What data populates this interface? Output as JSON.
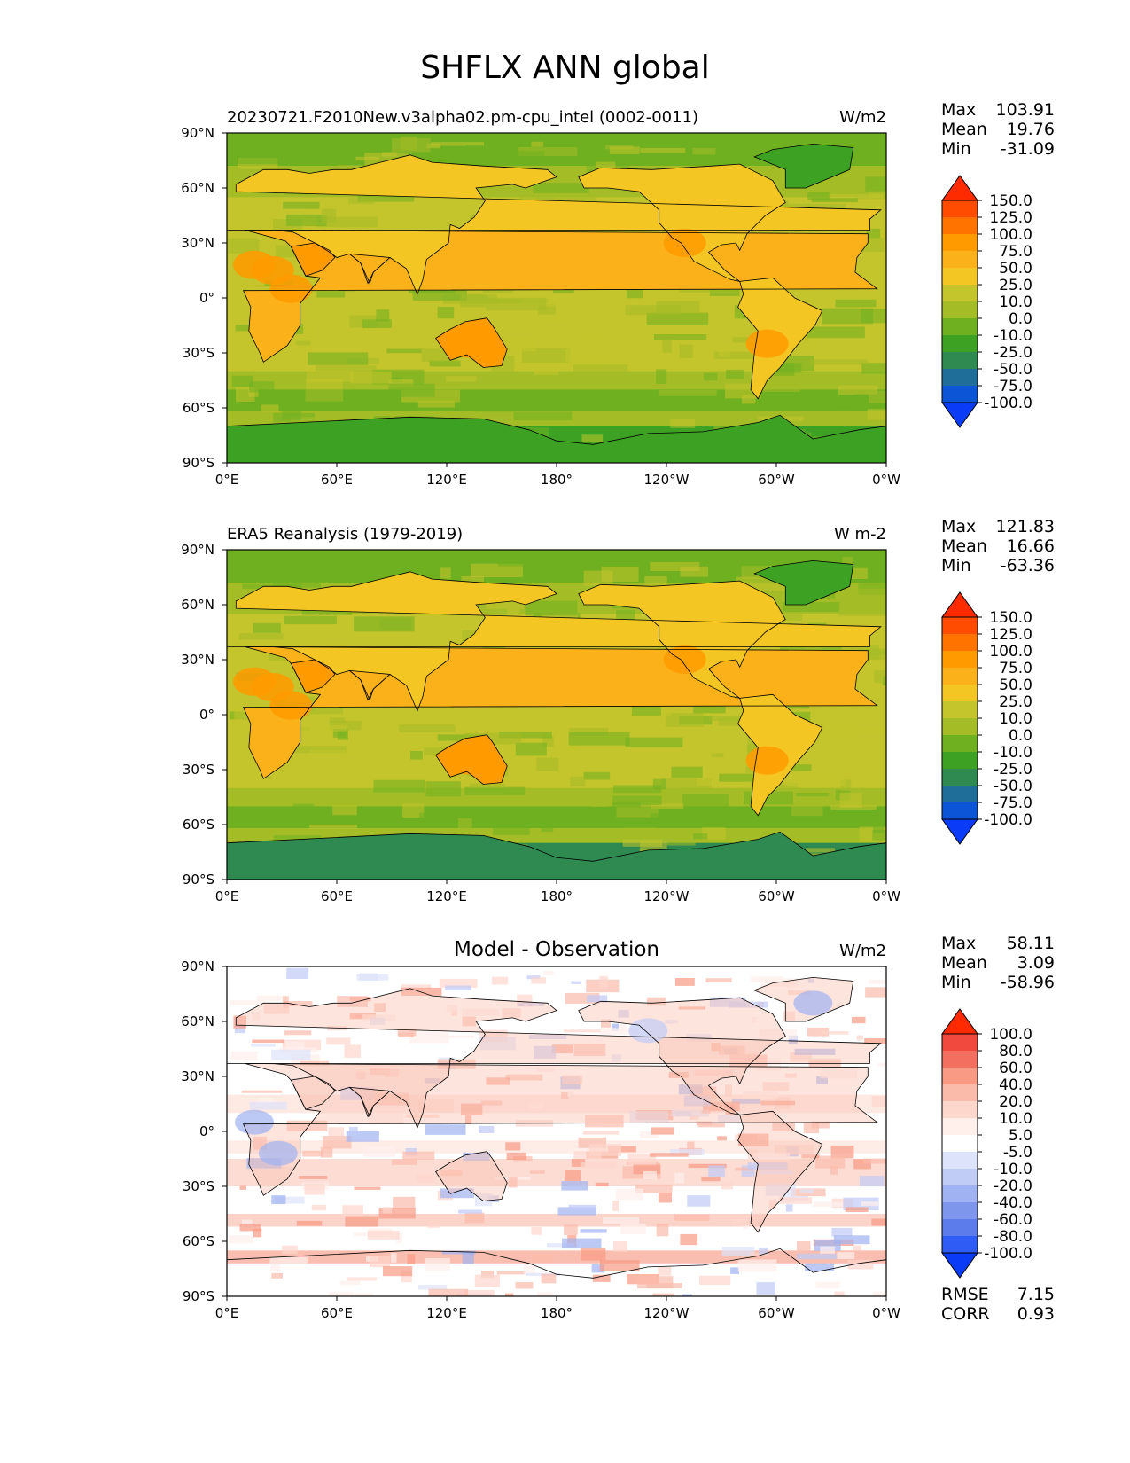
{
  "figure": {
    "title": "SHFLX ANN global"
  },
  "chart_data": [
    {
      "type": "heatmap",
      "id": "test",
      "title": "20230721.F2010New.v3alpha02.pm-cpu_intel (0002-0011)",
      "units": "W/m2",
      "stats": {
        "max_label": "Max",
        "max": "103.91",
        "mean_label": "Mean",
        "mean": "19.76",
        "min_label": "Min",
        "min": "-31.09"
      },
      "colorbar": {
        "levels": [
          "150.0",
          "125.0",
          "100.0",
          "75.0",
          "50.0",
          "25.0",
          "10.0",
          "0.0",
          "-10.0",
          "-25.0",
          "-50.0",
          "-75.0",
          "-100.0"
        ],
        "colors": [
          "#ff2b00",
          "#ff4c00",
          "#ff7400",
          "#ff9a00",
          "#fbb21a",
          "#f3c624",
          "#c4c42c",
          "#a4bc26",
          "#6fb020",
          "#3da224",
          "#2e8a50",
          "#1f6e9a",
          "#0b55d6",
          "#0a3cf8"
        ]
      },
      "xticks": [
        "0°E",
        "60°E",
        "120°E",
        "180°",
        "120°W",
        "60°W",
        "0°W"
      ],
      "yticks": [
        "90°N",
        "60°N",
        "30°N",
        "0°",
        "30°S",
        "60°S",
        "90°S"
      ]
    },
    {
      "type": "heatmap",
      "id": "ref",
      "title": "ERA5 Reanalysis (1979-2019)",
      "units": "W m-2",
      "stats": {
        "max_label": "Max",
        "max": "121.83",
        "mean_label": "Mean",
        "mean": "16.66",
        "min_label": "Min",
        "min": "-63.36"
      },
      "colorbar": {
        "levels": [
          "150.0",
          "125.0",
          "100.0",
          "75.0",
          "50.0",
          "25.0",
          "10.0",
          "0.0",
          "-10.0",
          "-25.0",
          "-50.0",
          "-75.0",
          "-100.0"
        ],
        "colors": [
          "#ff2b00",
          "#ff4c00",
          "#ff7400",
          "#ff9a00",
          "#fbb21a",
          "#f3c624",
          "#c4c42c",
          "#a4bc26",
          "#6fb020",
          "#3da224",
          "#2e8a50",
          "#1f6e9a",
          "#0b55d6",
          "#0a3cf8"
        ]
      },
      "xticks": [
        "0°E",
        "60°E",
        "120°E",
        "180°",
        "120°W",
        "60°W",
        "0°W"
      ],
      "yticks": [
        "90°N",
        "60°N",
        "30°N",
        "0°",
        "30°S",
        "60°S",
        "90°S"
      ]
    },
    {
      "type": "heatmap",
      "id": "diff",
      "title": "Model - Observation",
      "units": "W/m2",
      "stats": {
        "max_label": "Max",
        "max": "58.11",
        "mean_label": "Mean",
        "mean": "3.09",
        "min_label": "Min",
        "min": "-58.96"
      },
      "metrics": {
        "rmse_label": "RMSE",
        "rmse": "7.15",
        "corr_label": "CORR",
        "corr": "0.93"
      },
      "colorbar": {
        "levels": [
          "100.0",
          "80.0",
          "60.0",
          "40.0",
          "20.0",
          "10.0",
          "5.0",
          "-5.0",
          "-10.0",
          "-20.0",
          "-40.0",
          "-60.0",
          "-80.0",
          "-100.0"
        ],
        "colors": [
          "#ff2a00",
          "#f2493e",
          "#f36f60",
          "#f89a84",
          "#fbbbab",
          "#fdd6cc",
          "#fff0ec",
          "#ffffff",
          "#dde3fa",
          "#c0cbf6",
          "#a0b2f1",
          "#7e97ec",
          "#5c7cec",
          "#2e5cf4",
          "#0a3cf8"
        ]
      },
      "xticks": [
        "0°E",
        "60°E",
        "120°E",
        "180°",
        "120°W",
        "60°W",
        "0°W"
      ],
      "yticks": [
        "90°N",
        "60°N",
        "30°N",
        "0°",
        "30°S",
        "60°S",
        "90°S"
      ]
    }
  ]
}
